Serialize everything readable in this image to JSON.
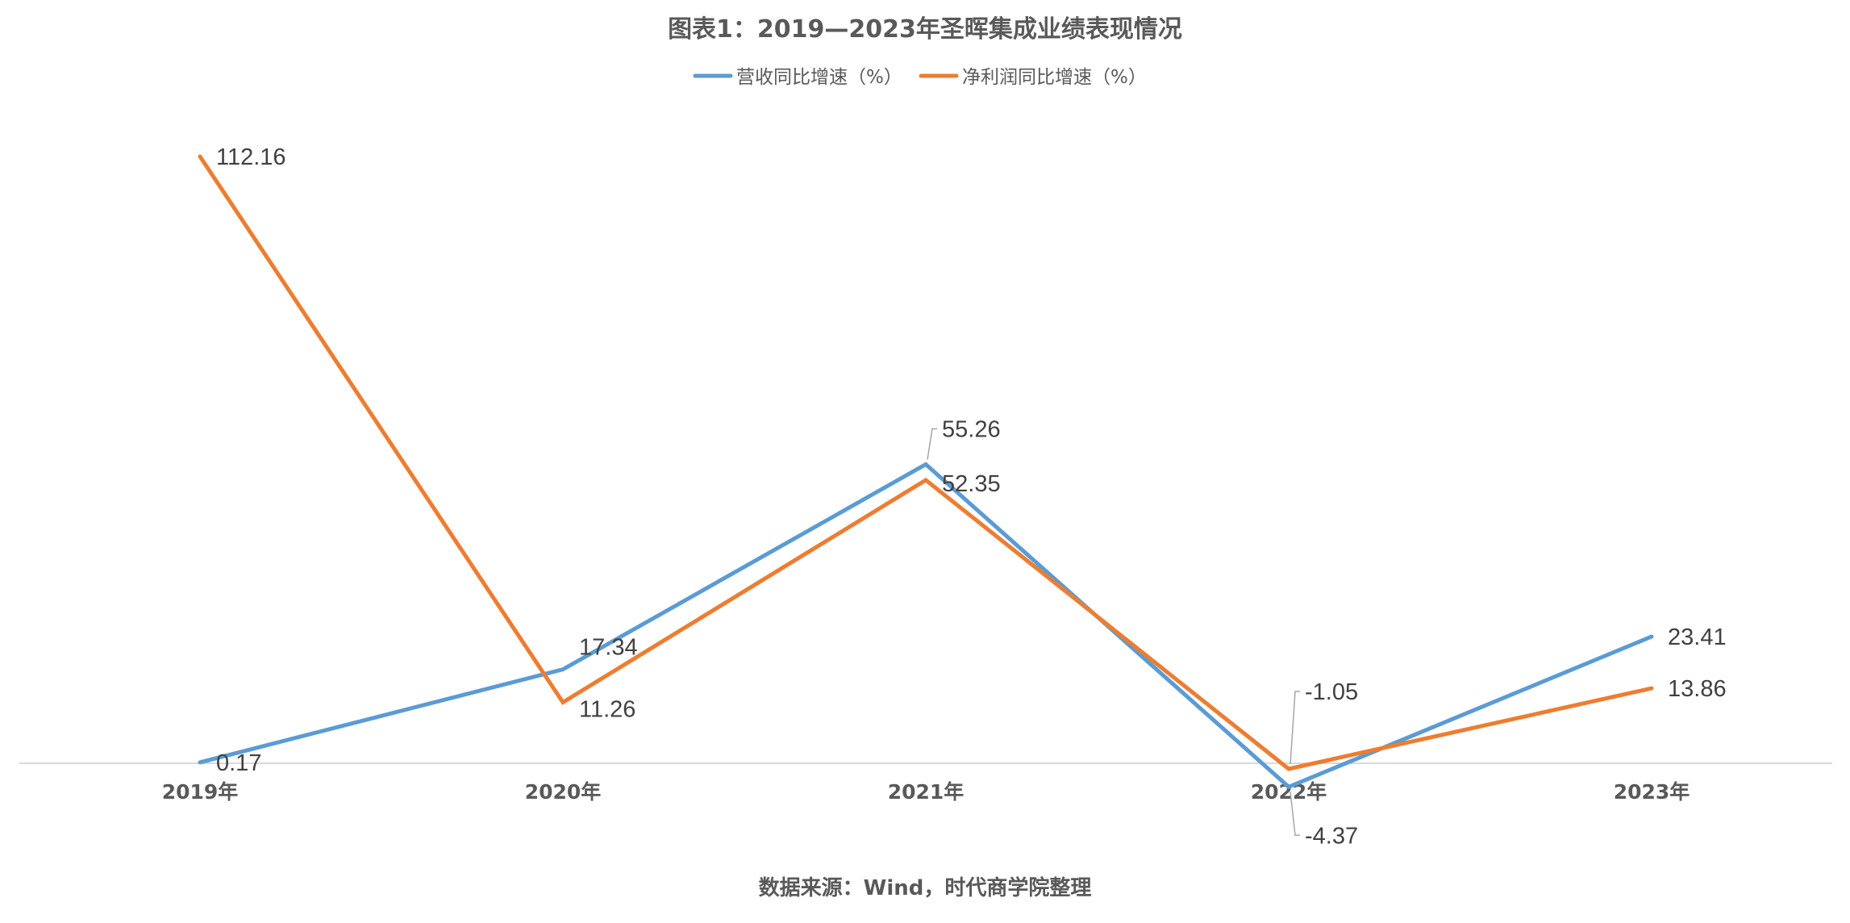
{
  "chart_data": {
    "type": "line",
    "title": "图表1：2019—2023年圣晖集成业绩表现情况",
    "categories": [
      "2019年",
      "2020年",
      "2021年",
      "2022年",
      "2023年"
    ],
    "series": [
      {
        "name": "营收同比增速（%）",
        "color": "#5B9BD5",
        "values": [
          0.17,
          17.34,
          55.26,
          -4.37,
          23.41
        ]
      },
      {
        "name": "净利润同比增速（%）",
        "color": "#ED7D31",
        "values": [
          112.16,
          11.26,
          52.35,
          -1.05,
          13.86
        ]
      }
    ],
    "ylim": [
      -5,
      115
    ],
    "grid": false,
    "legend": "top-center",
    "source": "数据来源：Wind，时代商学院整理"
  }
}
